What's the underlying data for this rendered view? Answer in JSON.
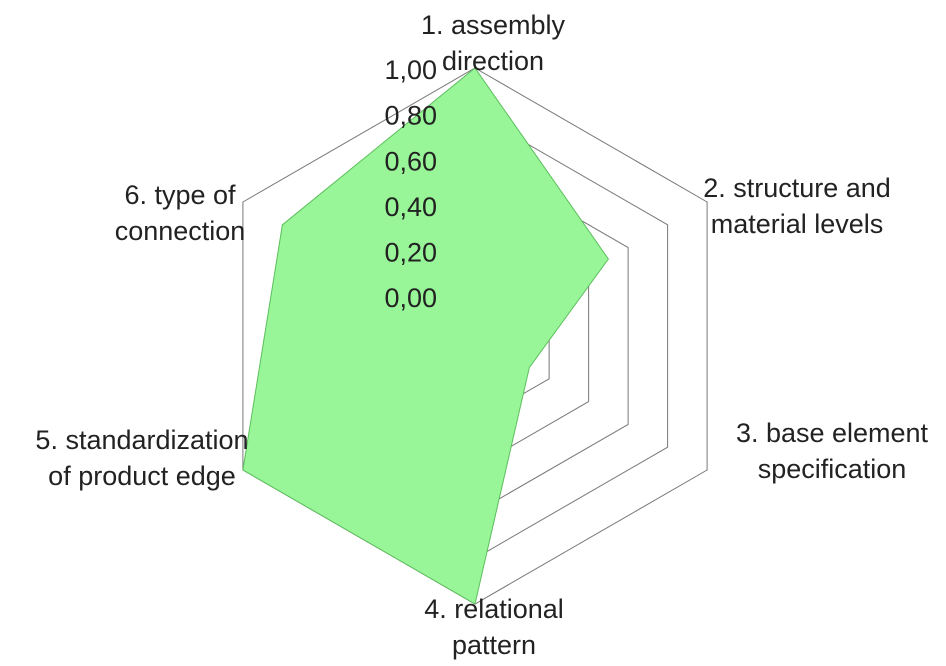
{
  "chart_data": {
    "type": "radar",
    "axes": [
      {
        "lines": [
          "1. assembly",
          "direction"
        ]
      },
      {
        "lines": [
          "2. structure and",
          "material levels"
        ]
      },
      {
        "lines": [
          "3. base element",
          "specification"
        ]
      },
      {
        "lines": [
          "4. relational",
          "pattern"
        ]
      },
      {
        "lines": [
          "5. standardization",
          "of product edge"
        ]
      },
      {
        "lines": [
          "6. type of",
          "connection"
        ]
      }
    ],
    "tick_labels": [
      "0,00",
      "0,20",
      "0,40",
      "0,60",
      "0,80",
      "1,00"
    ],
    "range": [
      0,
      1
    ],
    "series": [
      {
        "values": [
          1.0,
          0.5,
          0.1,
          1.0,
          1.0,
          0.8
        ],
        "color": "#98f598"
      }
    ],
    "grid_color": "#777777",
    "series_edge_color": "#5cbf5c"
  }
}
